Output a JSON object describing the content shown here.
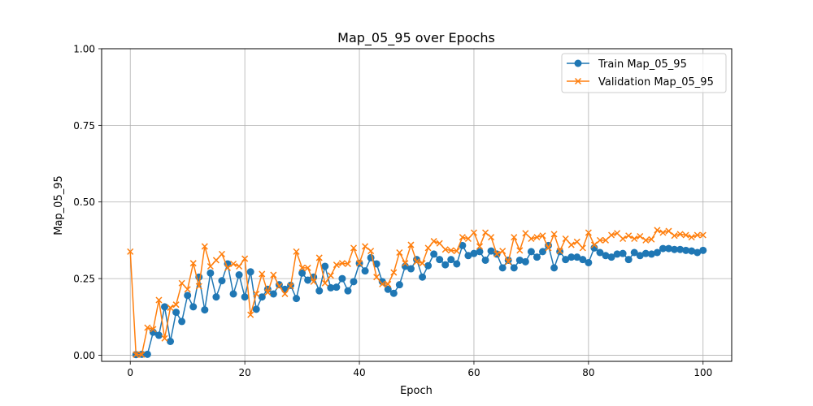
{
  "chart_data": {
    "type": "line",
    "title": "Map_05_95 over Epochs",
    "xlabel": "Epoch",
    "ylabel": "Map_05_95",
    "xlim": [
      -5,
      105
    ],
    "ylim": [
      -0.02,
      1.0
    ],
    "xticks": [
      "0",
      "20",
      "40",
      "60",
      "80",
      "100"
    ],
    "yticks": [
      "0.00",
      "0.25",
      "0.50",
      "0.75",
      "1.00"
    ],
    "grid": true,
    "legend_position": "top-right",
    "series": [
      {
        "name": "Train Map_05_95",
        "color": "#1f77b4",
        "marker": "circle",
        "x": [
          1,
          2,
          3,
          4,
          5,
          6,
          7,
          8,
          9,
          10,
          11,
          12,
          13,
          14,
          15,
          16,
          17,
          18,
          19,
          20,
          21,
          22,
          23,
          24,
          25,
          26,
          27,
          28,
          29,
          30,
          31,
          32,
          33,
          34,
          35,
          36,
          37,
          38,
          39,
          40,
          41,
          42,
          43,
          44,
          45,
          46,
          47,
          48,
          49,
          50,
          51,
          52,
          53,
          54,
          55,
          56,
          57,
          58,
          59,
          60,
          61,
          62,
          63,
          64,
          65,
          66,
          67,
          68,
          69,
          70,
          71,
          72,
          73,
          74,
          75,
          76,
          77,
          78,
          79,
          80,
          81,
          82,
          83,
          84,
          85,
          86,
          87,
          88,
          89,
          90,
          91,
          92,
          93,
          94,
          95,
          96,
          97,
          98,
          99,
          100
        ],
        "y": [
          0.002,
          0.003,
          0.003,
          0.075,
          0.065,
          0.158,
          0.045,
          0.14,
          0.11,
          0.195,
          0.158,
          0.255,
          0.148,
          0.268,
          0.19,
          0.243,
          0.298,
          0.2,
          0.262,
          0.19,
          0.272,
          0.15,
          0.19,
          0.215,
          0.2,
          0.23,
          0.215,
          0.228,
          0.185,
          0.268,
          0.245,
          0.255,
          0.21,
          0.29,
          0.22,
          0.222,
          0.25,
          0.21,
          0.24,
          0.3,
          0.275,
          0.318,
          0.298,
          0.24,
          0.215,
          0.202,
          0.23,
          0.29,
          0.282,
          0.312,
          0.255,
          0.292,
          0.33,
          0.312,
          0.295,
          0.312,
          0.298,
          0.358,
          0.325,
          0.332,
          0.338,
          0.31,
          0.34,
          0.33,
          0.285,
          0.31,
          0.285,
          0.31,
          0.305,
          0.338,
          0.32,
          0.338,
          0.358,
          0.285,
          0.338,
          0.312,
          0.32,
          0.32,
          0.312,
          0.302,
          0.35,
          0.335,
          0.325,
          0.32,
          0.33,
          0.332,
          0.312,
          0.335,
          0.325,
          0.332,
          0.33,
          0.335,
          0.348,
          0.348,
          0.345,
          0.345,
          0.342,
          0.34,
          0.335,
          0.342
        ]
      },
      {
        "name": "Validation Map_05_95",
        "color": "#ff7f0e",
        "marker": "x",
        "x": [
          0,
          1,
          2,
          3,
          4,
          5,
          6,
          7,
          8,
          9,
          10,
          11,
          12,
          13,
          14,
          15,
          16,
          17,
          18,
          19,
          20,
          21,
          22,
          23,
          24,
          25,
          26,
          27,
          28,
          29,
          30,
          31,
          32,
          33,
          34,
          35,
          36,
          37,
          38,
          39,
          40,
          41,
          42,
          43,
          44,
          45,
          46,
          47,
          48,
          49,
          50,
          51,
          52,
          53,
          54,
          55,
          56,
          57,
          58,
          59,
          60,
          61,
          62,
          63,
          64,
          65,
          66,
          67,
          68,
          69,
          70,
          71,
          72,
          73,
          74,
          75,
          76,
          77,
          78,
          79,
          80,
          81,
          82,
          83,
          84,
          85,
          86,
          87,
          88,
          89,
          90,
          91,
          92,
          93,
          94,
          95,
          96,
          97,
          98,
          99,
          100
        ],
        "y": [
          0.338,
          0.002,
          0.002,
          0.09,
          0.085,
          0.18,
          0.055,
          0.155,
          0.165,
          0.235,
          0.215,
          0.3,
          0.225,
          0.355,
          0.29,
          0.31,
          0.33,
          0.285,
          0.298,
          0.29,
          0.315,
          0.132,
          0.2,
          0.265,
          0.205,
          0.262,
          0.225,
          0.2,
          0.225,
          0.338,
          0.285,
          0.285,
          0.24,
          0.318,
          0.235,
          0.26,
          0.295,
          0.3,
          0.298,
          0.35,
          0.3,
          0.355,
          0.34,
          0.255,
          0.232,
          0.232,
          0.27,
          0.335,
          0.3,
          0.36,
          0.305,
          0.3,
          0.35,
          0.372,
          0.365,
          0.345,
          0.342,
          0.34,
          0.385,
          0.38,
          0.4,
          0.355,
          0.4,
          0.385,
          0.33,
          0.34,
          0.305,
          0.385,
          0.342,
          0.398,
          0.38,
          0.385,
          0.39,
          0.35,
          0.395,
          0.34,
          0.38,
          0.36,
          0.37,
          0.35,
          0.4,
          0.36,
          0.375,
          0.375,
          0.392,
          0.398,
          0.38,
          0.39,
          0.38,
          0.388,
          0.375,
          0.378,
          0.408,
          0.4,
          0.405,
          0.39,
          0.395,
          0.392,
          0.385,
          0.392,
          0.392
        ]
      }
    ]
  }
}
